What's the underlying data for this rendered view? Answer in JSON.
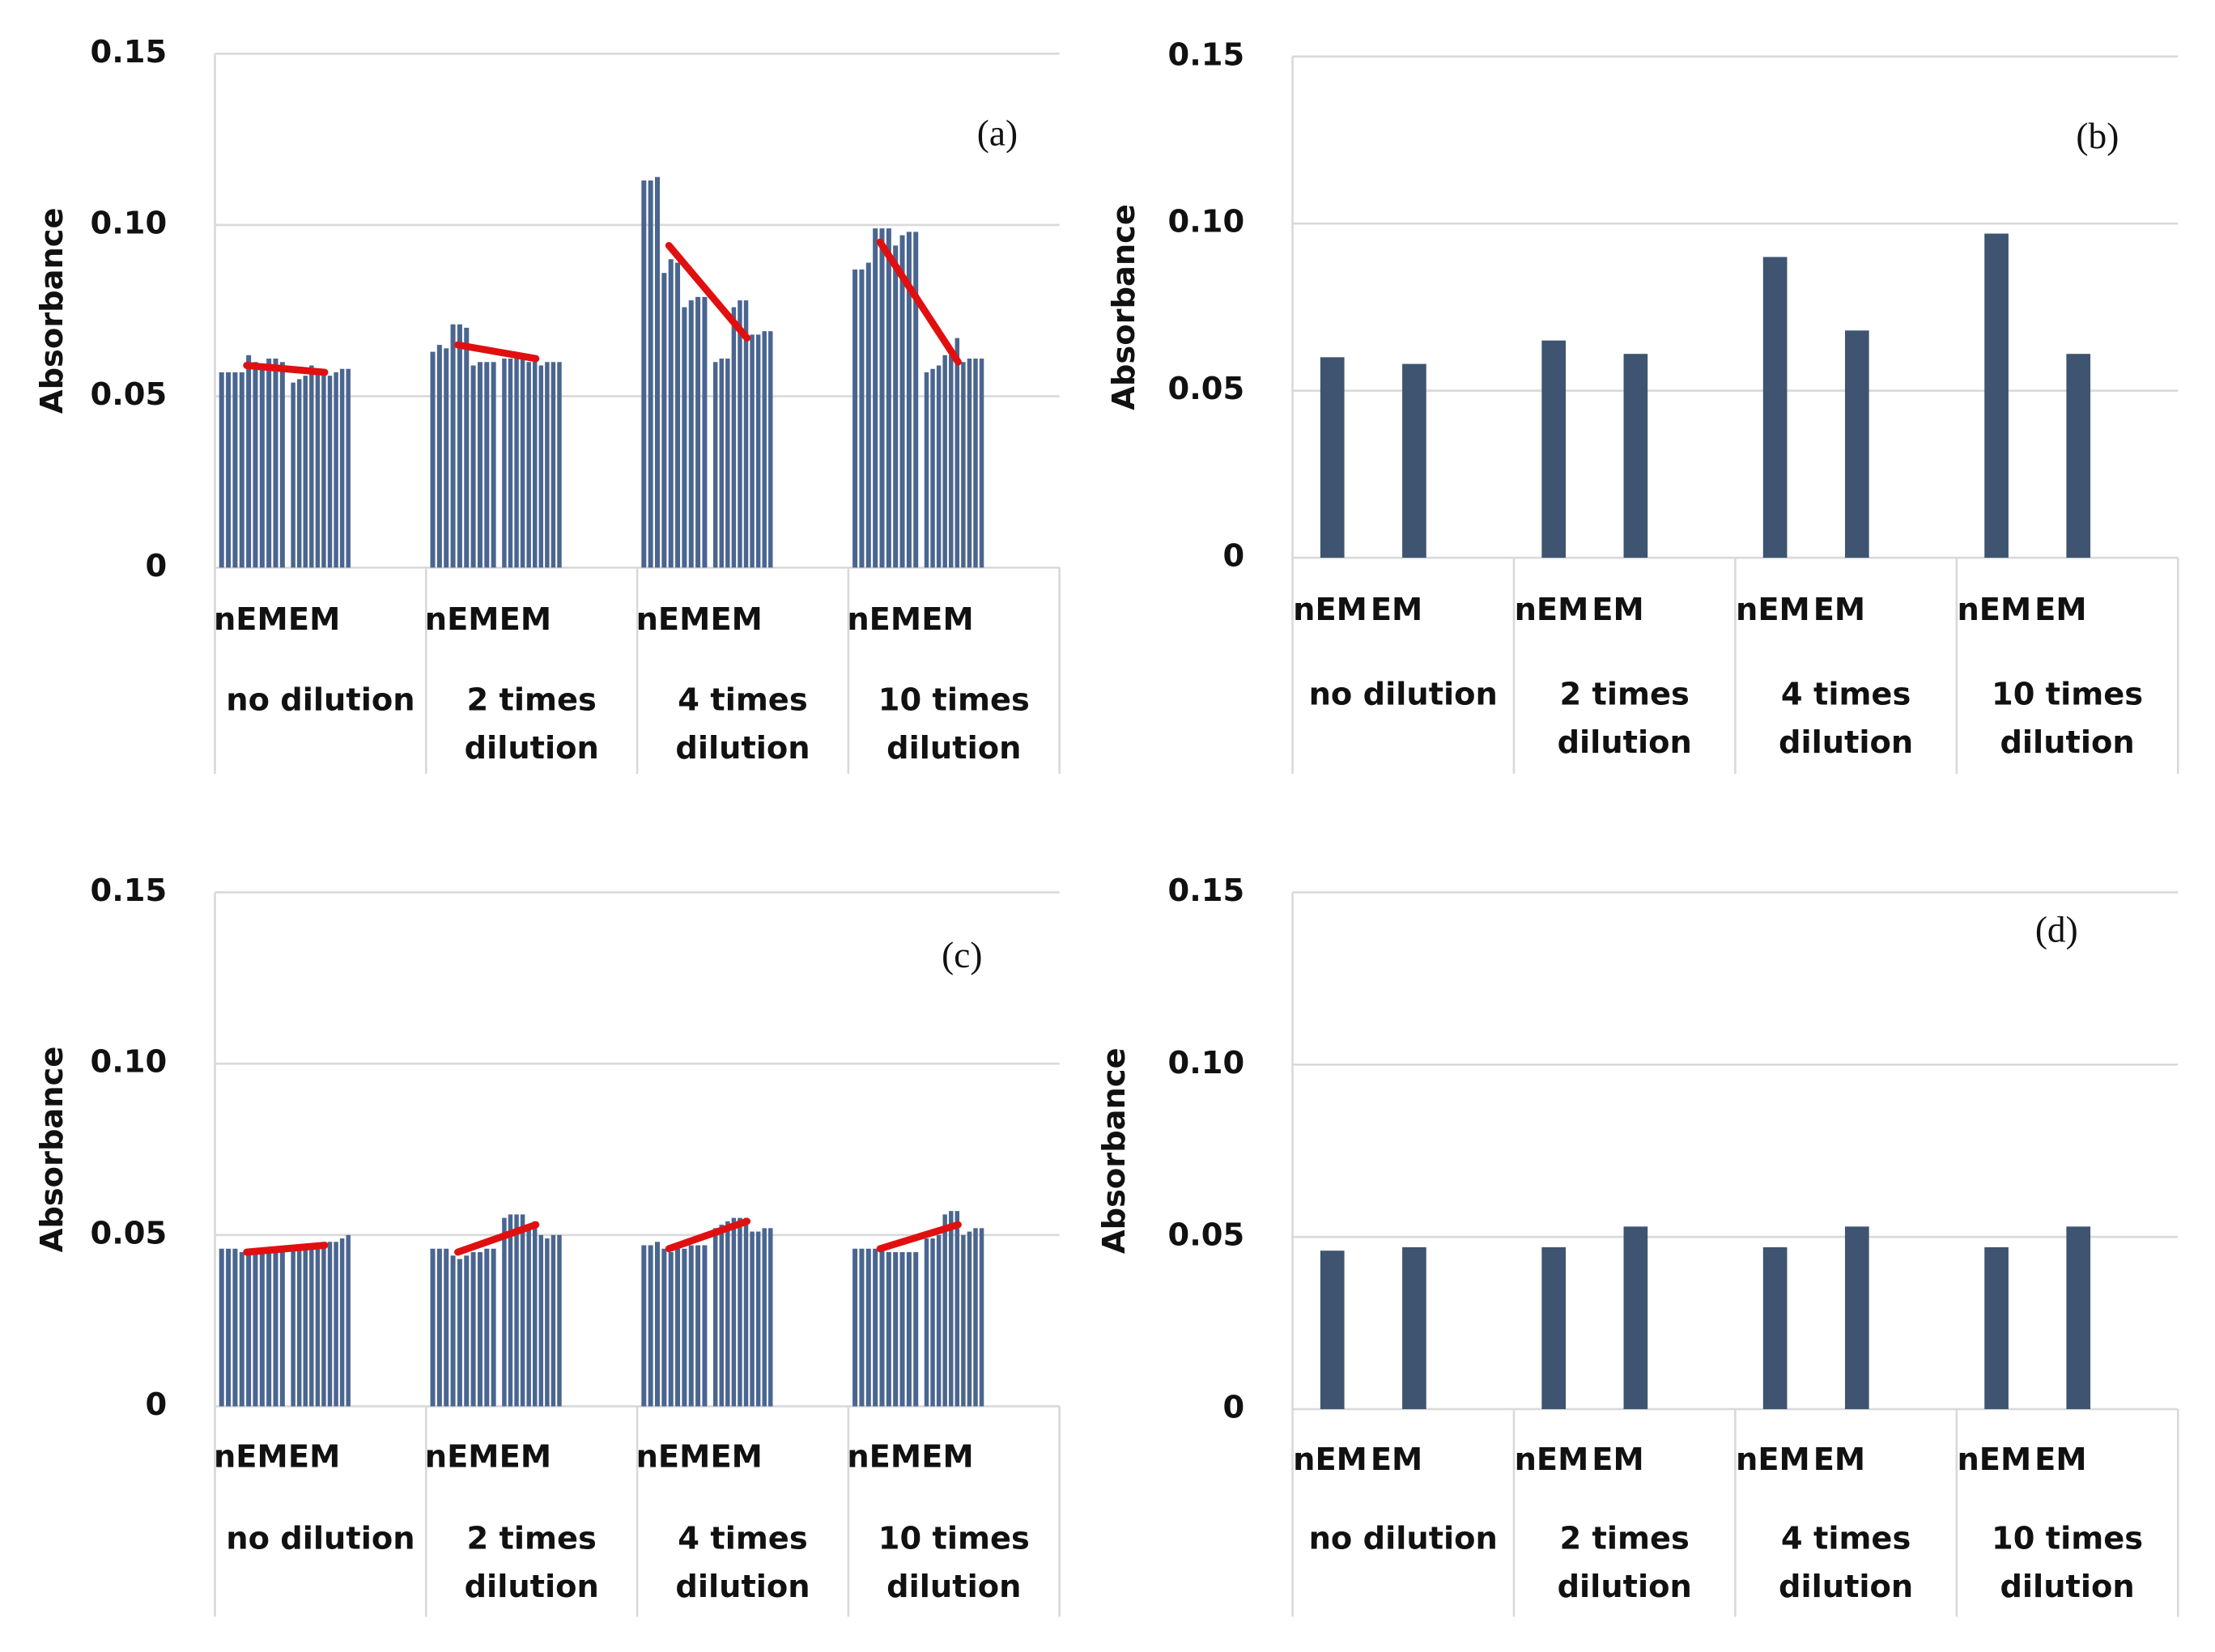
{
  "chart_data": [
    {
      "type": "replicate_bar",
      "panel_label": "(a)",
      "y_label": "Absorbance",
      "color": "#4a6590",
      "groups": [
        [
          "no dilution"
        ],
        [
          "2 times",
          "dilution"
        ],
        [
          "4 times",
          "dilution"
        ],
        [
          "10 times",
          "dilution"
        ]
      ],
      "categories": [
        "nEM",
        "EM",
        "nEM",
        "EM",
        "nEM",
        "EM",
        "nEM",
        "EM"
      ],
      "values": [
        [
          0.057,
          0.057,
          0.057,
          0.057,
          0.062,
          0.06,
          0.059,
          0.061,
          0.061,
          0.06
        ],
        [
          0.054,
          0.055,
          0.056,
          0.059,
          0.058,
          0.058,
          0.056,
          0.057,
          0.058,
          0.058
        ],
        [
          0.063,
          0.065,
          0.064,
          0.071,
          0.071,
          0.07,
          0.059,
          0.06,
          0.06,
          0.06
        ],
        [
          0.061,
          0.061,
          0.061,
          0.061,
          0.06,
          0.062,
          0.059,
          0.06,
          0.06,
          0.06
        ],
        [
          0.113,
          0.113,
          0.114,
          0.086,
          0.09,
          0.089,
          0.076,
          0.078,
          0.079,
          0.079
        ],
        [
          0.06,
          0.061,
          0.061,
          0.076,
          0.078,
          0.078,
          0.068,
          0.068,
          0.069,
          0.069
        ],
        [
          0.087,
          0.087,
          0.089,
          0.099,
          0.099,
          0.099,
          0.094,
          0.097,
          0.098,
          0.098
        ],
        [
          0.057,
          0.058,
          0.059,
          0.062,
          0.062,
          0.067,
          0.06,
          0.061,
          0.061,
          0.061
        ]
      ],
      "trend_lines": {
        "color": "#e01010",
        "values": [
          [
            0.059,
            0.057
          ],
          [
            0.065,
            0.061
          ],
          [
            0.094,
            0.067
          ],
          [
            0.095,
            0.06
          ]
        ]
      },
      "ylim": [
        0,
        0.15
      ],
      "yticks": [
        0,
        0.05,
        {
          "value": 0.1,
          "label": "0.10"
        },
        0.15
      ],
      "grid": true
    },
    {
      "type": "bar",
      "panel_label": "(b)",
      "y_label": "Absorbance",
      "color": "#3e5470",
      "groups": [
        [
          "no dilution"
        ],
        [
          "2 times",
          "dilution"
        ],
        [
          "4 times",
          "dilution"
        ],
        [
          "10 times",
          "dilution"
        ]
      ],
      "categories": [
        "nEM",
        "EM",
        "nEM",
        "EM",
        "nEM",
        "EM",
        "nEM",
        "EM"
      ],
      "values": [
        0.06,
        0.058,
        0.065,
        0.061,
        0.09,
        0.068,
        0.097,
        0.061
      ],
      "ylim": [
        0,
        0.15
      ],
      "yticks": [
        0,
        0.05,
        {
          "value": 0.1,
          "label": "0.10"
        },
        0.15
      ],
      "grid": true
    },
    {
      "type": "replicate_bar",
      "panel_label": "(c)",
      "y_label": "Absorbance",
      "color": "#4a6590",
      "groups": [
        [
          "no dilution"
        ],
        [
          "2 times",
          "dilution"
        ],
        [
          "4 times",
          "dilution"
        ],
        [
          "10 times",
          "dilution"
        ]
      ],
      "categories": [
        "nEM",
        "EM",
        "nEM",
        "EM",
        "nEM",
        "EM",
        "nEM",
        "EM"
      ],
      "values": [
        [
          0.046,
          0.046,
          0.046,
          0.045,
          0.045,
          0.045,
          0.045,
          0.046,
          0.045,
          0.045
        ],
        [
          0.046,
          0.046,
          0.046,
          0.046,
          0.047,
          0.047,
          0.048,
          0.048,
          0.049,
          0.05
        ],
        [
          0.046,
          0.046,
          0.046,
          0.044,
          0.043,
          0.044,
          0.045,
          0.045,
          0.046,
          0.046
        ],
        [
          0.055,
          0.056,
          0.056,
          0.056,
          0.053,
          0.054,
          0.05,
          0.049,
          0.05,
          0.05
        ],
        [
          0.047,
          0.047,
          0.048,
          0.046,
          0.045,
          0.046,
          0.046,
          0.047,
          0.047,
          0.047
        ],
        [
          0.052,
          0.053,
          0.054,
          0.055,
          0.055,
          0.055,
          0.051,
          0.051,
          0.052,
          0.052
        ],
        [
          0.046,
          0.046,
          0.046,
          0.046,
          0.046,
          0.045,
          0.045,
          0.045,
          0.045,
          0.045
        ],
        [
          0.049,
          0.049,
          0.05,
          0.056,
          0.057,
          0.057,
          0.05,
          0.051,
          0.052,
          0.052
        ]
      ],
      "trend_lines": {
        "color": "#e01010",
        "values": [
          [
            0.045,
            0.047
          ],
          [
            0.045,
            0.053
          ],
          [
            0.046,
            0.054
          ],
          [
            0.046,
            0.053
          ]
        ]
      },
      "ylim": [
        0,
        0.15
      ],
      "yticks": [
        0,
        0.05,
        {
          "value": 0.1,
          "label": "0.10"
        },
        0.15
      ],
      "grid": true
    },
    {
      "type": "bar",
      "panel_label": "(d)",
      "y_label": "Absorbance",
      "color": "#3e5470",
      "groups": [
        [
          "no dilution"
        ],
        [
          "2 times",
          "dilution"
        ],
        [
          "4 times",
          "dilution"
        ],
        [
          "10 times",
          "dilution"
        ]
      ],
      "categories": [
        "nEM",
        "EM",
        "nEM",
        "EM",
        "nEM",
        "EM",
        "nEM",
        "EM"
      ],
      "values": [
        0.046,
        0.047,
        0.047,
        0.053,
        0.047,
        0.053,
        0.047,
        0.053
      ],
      "ylim": [
        0,
        0.15
      ],
      "yticks": [
        0,
        0.05,
        {
          "value": 0.1,
          "label": "0.10"
        },
        0.15
      ],
      "grid": true
    }
  ]
}
